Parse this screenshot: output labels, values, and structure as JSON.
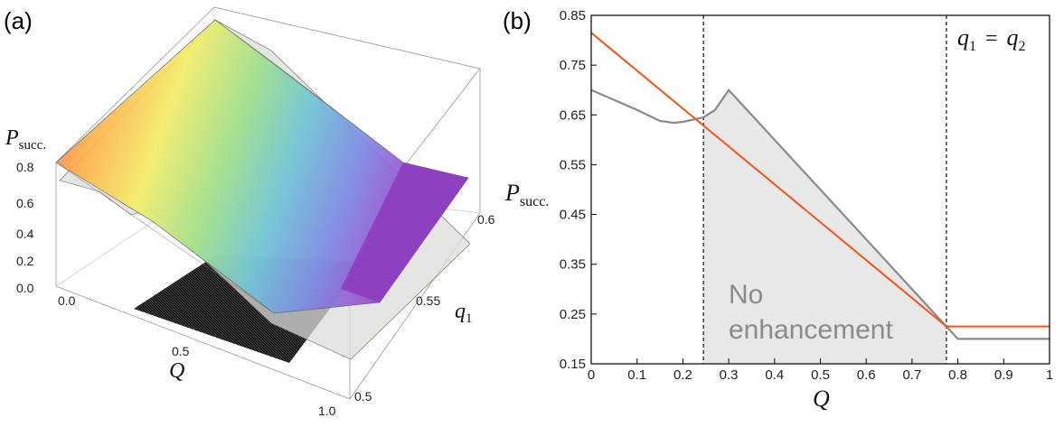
{
  "panels": {
    "a_label": "(a)",
    "b_label": "(b)"
  },
  "panel_a": {
    "zlabel_main": "P",
    "zlabel_sub": "succ.",
    "xlabel": "Q",
    "ylabel_main": "q",
    "ylabel_sub": "1",
    "z_ticks": [
      "0.0",
      "0.2",
      "0.4",
      "0.6",
      "0.8"
    ],
    "x_ticks": [
      "0.0",
      "0.5",
      "1.0"
    ],
    "y_ticks": [
      "0.5",
      "0.55",
      "0.6"
    ]
  },
  "panel_b": {
    "ylabel_main": "P",
    "ylabel_sub": "succ.",
    "xlabel": "Q",
    "legend_q1": "q",
    "legend_sub1": "1",
    "legend_eq": "=",
    "legend_q2": "q",
    "legend_sub2": "2",
    "annotation_line1": "No",
    "annotation_line2": "enhancement"
  },
  "chart_data": [
    {
      "type": "surface",
      "axes": {
        "x": "Q",
        "y": "q_1",
        "z": "P_succ."
      },
      "xlim": [
        0,
        1
      ],
      "ylim": [
        0.5,
        0.6
      ],
      "zlim": [
        0,
        0.85
      ],
      "series": [
        {
          "name": "",
          "colormap": "rainbow",
          "note_values": [
            0.82,
            0.23
          ]
        },
        {
          "name": "",
          "color": "#dcdcd8"
        },
        {
          "name": "",
          "color": "#000000"
        }
      ]
    },
    {
      "type": "line",
      "xlabel": "Q",
      "ylabel": "P_succ.",
      "xlim": [
        0,
        1
      ],
      "ylim": [
        0.15,
        0.85
      ],
      "x_ticks": [
        0,
        0.1,
        0.2,
        0.3,
        0.4,
        0.5,
        0.6,
        0.7,
        0.8,
        0.9,
        1
      ],
      "y_ticks": [
        0.15,
        0.25,
        0.35,
        0.45,
        0.55,
        0.65,
        0.75,
        0.85
      ],
      "vlines": [
        0.245,
        0.775
      ],
      "shaded_region": {
        "x_from": 0.245,
        "x_to": 0.775,
        "color": "#e8e8e8"
      },
      "series": [
        {
          "name": "",
          "color": "#f0561a",
          "x": [
            0,
            0.775,
            0.775,
            1
          ],
          "y": [
            0.815,
            0.225,
            0.225,
            0.225
          ]
        },
        {
          "name": "",
          "color": "#8a8a8a",
          "x": [
            0,
            0.05,
            0.1,
            0.15,
            0.18,
            0.2,
            0.22,
            0.245,
            0.27,
            0.3,
            0.775,
            0.8,
            1
          ],
          "y": [
            0.7,
            0.68,
            0.66,
            0.638,
            0.634,
            0.636,
            0.64,
            0.645,
            0.66,
            0.7,
            0.225,
            0.2,
            0.2
          ]
        }
      ]
    }
  ]
}
